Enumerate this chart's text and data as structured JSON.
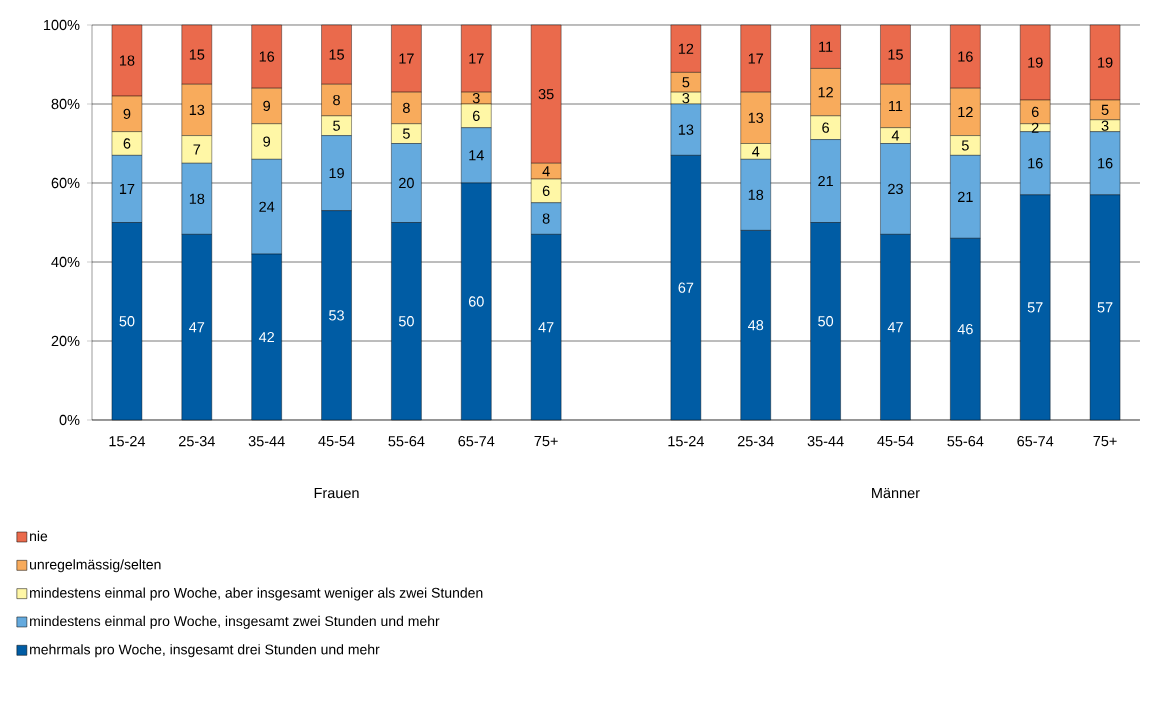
{
  "chart_data": {
    "type": "bar",
    "stacked": true,
    "data_labels": true,
    "grid": "y",
    "legend": "bottom",
    "categories": [
      "15-24",
      "25-34",
      "35-44",
      "45-54",
      "55-64",
      "65-74",
      "75+",
      null,
      "15-24",
      "25-34",
      "35-44",
      "45-54",
      "55-64",
      "65-74",
      "75+"
    ],
    "series": [
      {
        "name": "mehrmals pro Woche, insgesamt drei Stunden und mehr",
        "color": "#005ca4",
        "values": [
          50,
          47,
          42,
          53,
          50,
          60,
          47,
          null,
          67,
          48,
          50,
          47,
          46,
          57,
          57
        ]
      },
      {
        "name": "mindestens einmal pro Woche, insgesamt zwei Stunden und mehr",
        "color": "#64aade",
        "values": [
          17,
          18,
          24,
          19,
          20,
          14,
          8,
          null,
          13,
          18,
          21,
          23,
          21,
          16,
          16
        ]
      },
      {
        "name": "mindestens einmal pro Woche, aber insgesamt weniger als zwei Stunden",
        "color": "#fff7a6",
        "values": [
          6,
          7,
          9,
          5,
          5,
          6,
          6,
          null,
          3,
          4,
          6,
          4,
          5,
          2,
          3
        ]
      },
      {
        "name": "unregelmässig/selten",
        "color": "#f8ab5c",
        "values": [
          9,
          13,
          9,
          8,
          8,
          3,
          4,
          null,
          5,
          13,
          12,
          11,
          12,
          6,
          5
        ]
      },
      {
        "name": "nie",
        "color": "#ea6a4c",
        "values": [
          18,
          15,
          16,
          15,
          17,
          17,
          35,
          null,
          12,
          17,
          11,
          15,
          16,
          19,
          19
        ]
      }
    ],
    "ylim": [
      0,
      100
    ],
    "yticks": [
      {
        "value": 0,
        "label": "0%"
      },
      {
        "value": 20,
        "label": "20%"
      },
      {
        "value": 40,
        "label": "40%"
      },
      {
        "value": 60,
        "label": "60%"
      },
      {
        "value": 80,
        "label": "80%"
      },
      {
        "value": 100,
        "label": "100%"
      }
    ],
    "annotations": [
      "Frauen",
      "Männer"
    ]
  }
}
